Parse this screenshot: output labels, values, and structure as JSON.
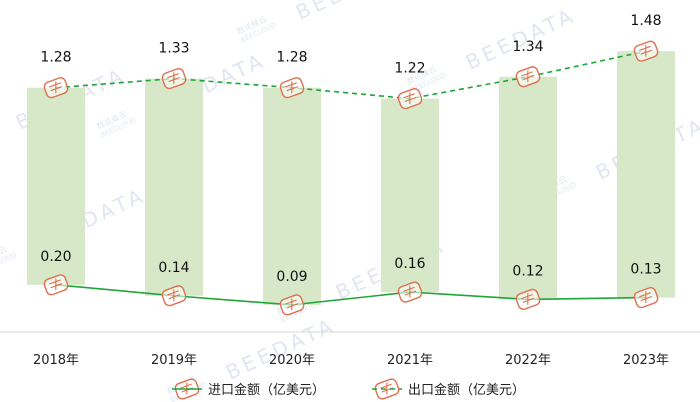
{
  "chart_data": {
    "type": "line",
    "categories": [
      "2018年",
      "2019年",
      "2020年",
      "2021年",
      "2022年",
      "2023年"
    ],
    "series": [
      {
        "name": "进口金额（亿美元）",
        "values": [
          0.2,
          0.14,
          0.09,
          0.16,
          0.12,
          0.13
        ],
        "labels": [
          "0.20",
          "0.14",
          "0.09",
          "0.16",
          "0.12",
          "0.13"
        ],
        "color": "#1fa53a",
        "style": "solid"
      },
      {
        "name": "出口金额（亿美元）",
        "values": [
          1.28,
          1.33,
          1.28,
          1.22,
          1.34,
          1.48
        ],
        "labels": [
          "1.28",
          "1.33",
          "1.28",
          "1.22",
          "1.34",
          "1.48"
        ],
        "color": "#1fa53a",
        "style": "dashed"
      }
    ],
    "bar_color": "#d6e8c7",
    "marker_color": "#e0704f",
    "grid": false,
    "legend_position": "bottom"
  },
  "watermark": {
    "text": "BEEDATA",
    "subtext": "BEECLOUD",
    "cn_text": "数说蜂云"
  }
}
